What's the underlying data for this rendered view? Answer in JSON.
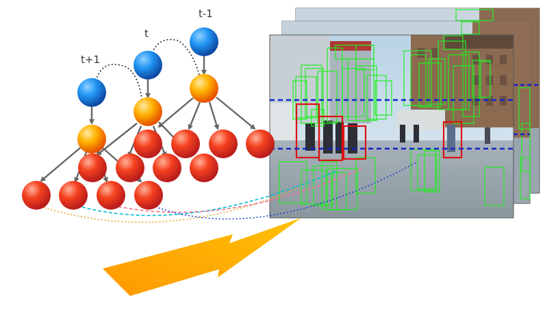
{
  "time_labels": {
    "prev": "t-1",
    "current": "t",
    "next": "t+1"
  },
  "colors": {
    "top_node": "#1e88e5",
    "middle_node": "#ffa000",
    "leaf_node": "#e53935",
    "edge": "#666666",
    "detection_box": "#22ee22",
    "selected_box": "#dd1111",
    "scan_band": "#1122cc",
    "arrow": "#ffa000"
  },
  "icons": {
    "scene_frames": "street-photo-stack"
  }
}
